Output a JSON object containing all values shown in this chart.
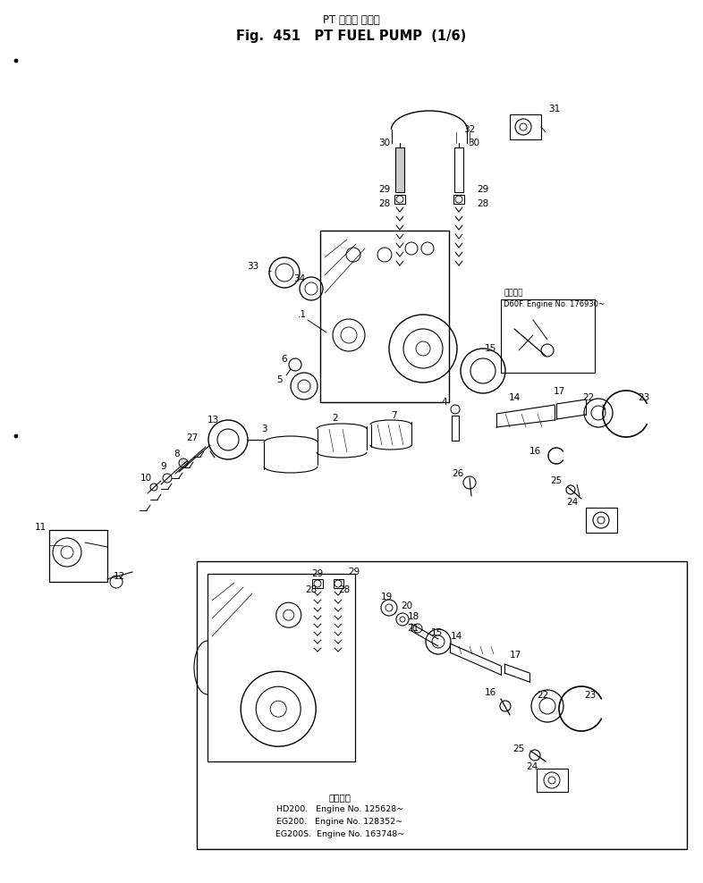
{
  "title_jp": "PT フェル ポンプ",
  "title_en": "Fig.  451   PT FUEL PUMP (1/₆)",
  "bg_color": "#ffffff",
  "fig_width": 7.86,
  "fig_height": 9.88,
  "inset_note": [
    "適用号機",
    "HD200.   Engine No. 125628~",
    "EG200.   Engine No. 128352~",
    "EG200S.  Engine No. 163748~"
  ],
  "inset2_note": [
    "適用号機",
    "D60F. Engine No. 176930~"
  ]
}
